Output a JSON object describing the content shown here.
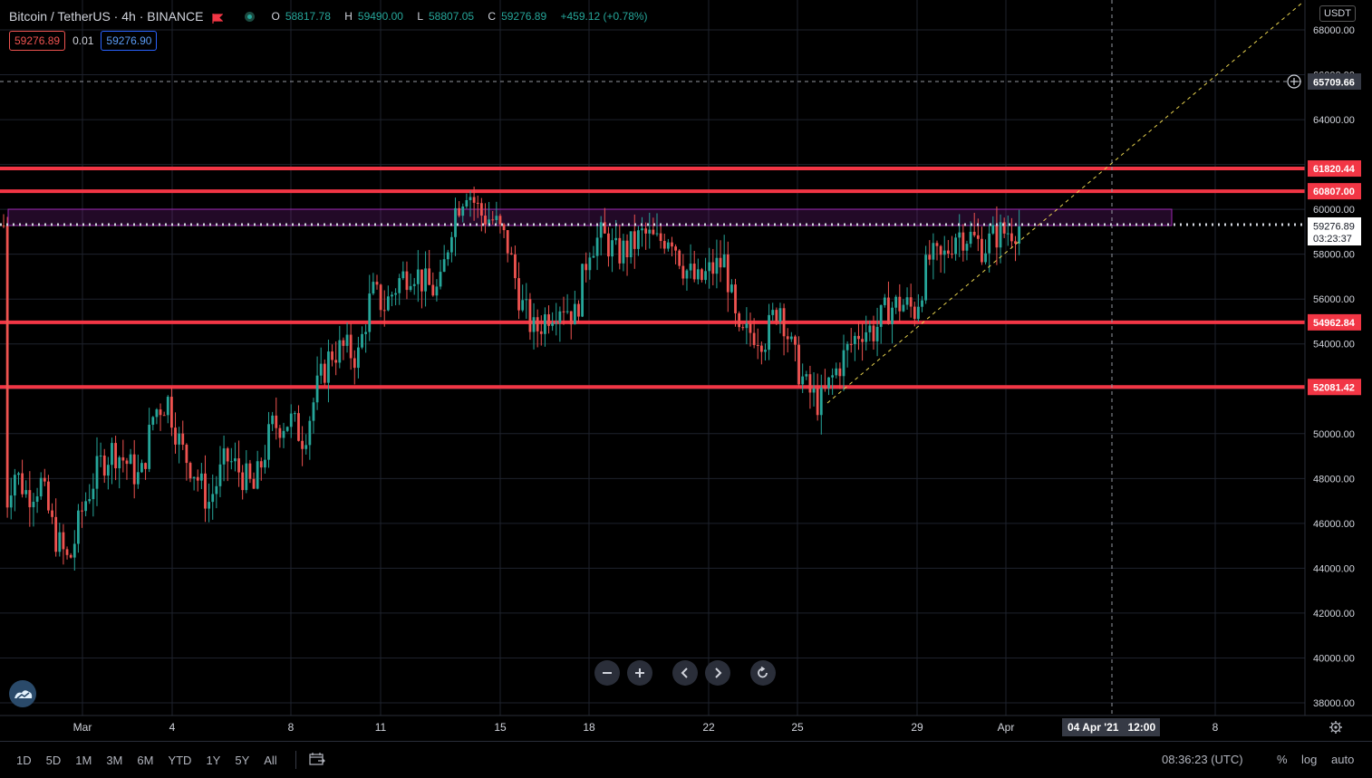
{
  "header": {
    "symbol": "Bitcoin / TetherUS · 4h · BINANCE",
    "o_label": "O",
    "o_value": "58817.78",
    "h_label": "H",
    "h_value": "59490.00",
    "l_label": "L",
    "l_value": "58807.05",
    "c_label": "C",
    "c_value": "59276.89",
    "change": "+459.12 (+0.78%)"
  },
  "trade": {
    "sell_price": "59276.89",
    "quantity": "0.01",
    "buy_price": "59276.90"
  },
  "currency": "USDT",
  "axis": {
    "y_ticks": [
      "68000.00",
      "66000.00",
      "64000.00",
      "62000.00",
      "60000.00",
      "58000.00",
      "56000.00",
      "54000.00",
      "52000.00",
      "50000.00",
      "48000.00",
      "46000.00",
      "44000.00",
      "42000.00",
      "40000.00",
      "38000.00"
    ],
    "x_ticks": [
      "Mar",
      "4",
      "8",
      "11",
      "15",
      "18",
      "22",
      "25",
      "29",
      "Apr",
      "8"
    ],
    "crosshair_time": "04 Apr '21   12:00",
    "crosshair_price": "65709.66",
    "last_price": "59276.89",
    "countdown": "03:23:37"
  },
  "levels": [
    "61820.44",
    "60807.00",
    "54962.84",
    "52081.42"
  ],
  "colors": {
    "up": "#26a69a",
    "down": "#ef5350",
    "level": "#f23645",
    "zone": "#9c27b0",
    "trend": "#e8d34f",
    "bg": "#000000"
  },
  "bottom": {
    "ranges": [
      "1D",
      "5D",
      "1M",
      "3M",
      "6M",
      "YTD",
      "1Y",
      "5Y",
      "All"
    ],
    "clock": "08:36:23 (UTC)",
    "percent": "%",
    "log": "log",
    "auto": "auto"
  },
  "chart_data": {
    "type": "candlestick",
    "ylim": [
      37500,
      69000
    ],
    "series_up_color": "#26a69a",
    "series_down_color": "#ef5350",
    "anchors": [
      {
        "x": 5,
        "price": 46500
      },
      {
        "x": 15,
        "price": 48400
      },
      {
        "x": 30,
        "price": 47300
      },
      {
        "x": 45,
        "price": 47800
      },
      {
        "x": 60,
        "price": 45500
      },
      {
        "x": 76,
        "price": 44200
      },
      {
        "x": 92,
        "price": 46800
      },
      {
        "x": 110,
        "price": 48600
      },
      {
        "x": 125,
        "price": 49300
      },
      {
        "x": 140,
        "price": 48700
      },
      {
        "x": 155,
        "price": 47900
      },
      {
        "x": 170,
        "price": 51000
      },
      {
        "x": 185,
        "price": 51500
      },
      {
        "x": 200,
        "price": 49300
      },
      {
        "x": 215,
        "price": 48300
      },
      {
        "x": 230,
        "price": 46900
      },
      {
        "x": 250,
        "price": 48900
      },
      {
        "x": 265,
        "price": 48300
      },
      {
        "x": 280,
        "price": 47500
      },
      {
        "x": 300,
        "price": 50300
      },
      {
        "x": 320,
        "price": 50600
      },
      {
        "x": 335,
        "price": 49800
      },
      {
        "x": 350,
        "price": 52000
      },
      {
        "x": 365,
        "price": 53600
      },
      {
        "x": 380,
        "price": 53800
      },
      {
        "x": 395,
        "price": 53400
      },
      {
        "x": 410,
        "price": 56300
      },
      {
        "x": 425,
        "price": 55700
      },
      {
        "x": 440,
        "price": 56800
      },
      {
        "x": 455,
        "price": 57400
      },
      {
        "x": 470,
        "price": 56600
      },
      {
        "x": 485,
        "price": 56300
      },
      {
        "x": 500,
        "price": 59800
      },
      {
        "x": 515,
        "price": 61000
      },
      {
        "x": 530,
        "price": 59800
      },
      {
        "x": 545,
        "price": 59500
      },
      {
        "x": 560,
        "price": 58400
      },
      {
        "x": 575,
        "price": 55800
      },
      {
        "x": 590,
        "price": 54500
      },
      {
        "x": 605,
        "price": 55400
      },
      {
        "x": 620,
        "price": 55900
      },
      {
        "x": 635,
        "price": 55200
      },
      {
        "x": 650,
        "price": 58400
      },
      {
        "x": 665,
        "price": 58800
      },
      {
        "x": 680,
        "price": 58000
      },
      {
        "x": 695,
        "price": 58300
      },
      {
        "x": 710,
        "price": 58900
      },
      {
        "x": 725,
        "price": 58500
      },
      {
        "x": 740,
        "price": 59000
      },
      {
        "x": 755,
        "price": 57400
      },
      {
        "x": 770,
        "price": 56700
      },
      {
        "x": 785,
        "price": 57300
      },
      {
        "x": 800,
        "price": 57700
      },
      {
        "x": 815,
        "price": 54100
      },
      {
        "x": 830,
        "price": 54600
      },
      {
        "x": 845,
        "price": 54300
      },
      {
        "x": 860,
        "price": 55900
      },
      {
        "x": 875,
        "price": 53500
      },
      {
        "x": 890,
        "price": 52000
      },
      {
        "x": 905,
        "price": 51300
      },
      {
        "x": 920,
        "price": 52600
      },
      {
        "x": 935,
        "price": 53700
      },
      {
        "x": 950,
        "price": 54700
      },
      {
        "x": 965,
        "price": 54600
      },
      {
        "x": 980,
        "price": 55600
      },
      {
        "x": 995,
        "price": 55800
      },
      {
        "x": 1010,
        "price": 55500
      },
      {
        "x": 1025,
        "price": 57800
      },
      {
        "x": 1040,
        "price": 57700
      },
      {
        "x": 1055,
        "price": 59000
      },
      {
        "x": 1070,
        "price": 58800
      },
      {
        "x": 1085,
        "price": 58300
      },
      {
        "x": 1100,
        "price": 58900
      },
      {
        "x": 1110,
        "price": 59000
      },
      {
        "x": 1125,
        "price": 59277
      }
    ]
  }
}
